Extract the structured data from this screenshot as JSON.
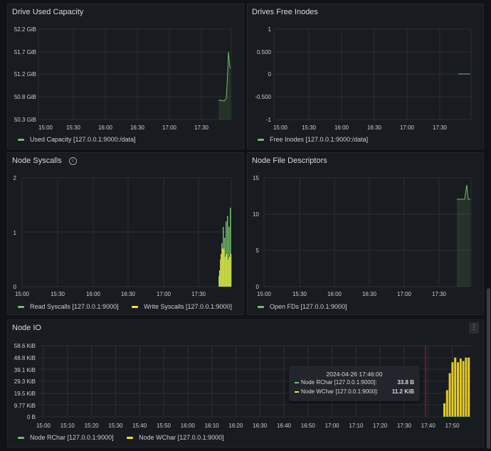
{
  "panels": [
    {
      "id": "drive-used",
      "title": "Drive Used Capacity",
      "y_ticks": [
        "52.2 GiB",
        "51.7 GiB",
        "51.2 GiB",
        "50.8 GiB",
        "50.3 GiB"
      ],
      "x_ticks": [
        "15:00",
        "15:30",
        "16:00",
        "16:30",
        "17:00",
        "17:30"
      ],
      "legend": [
        {
          "label": "Used Capacity [127.0.0.1:9000:/data]",
          "color": "#73bf69"
        }
      ]
    },
    {
      "id": "drives-free-inodes",
      "title": "Drives Free Inodes",
      "y_ticks": [
        "1",
        "0.500",
        "0",
        "-0.500",
        "-1"
      ],
      "x_ticks": [
        "15:00",
        "15:30",
        "16:00",
        "16:30",
        "17:00",
        "17:30"
      ],
      "legend": [
        {
          "label": "Free Inodes [127.0.0.1:9000:/data]",
          "color": "#73bf69"
        }
      ]
    },
    {
      "id": "node-syscalls",
      "title": "Node Syscalls",
      "info_icon": "i",
      "y_ticks": [
        "2",
        "1",
        "0"
      ],
      "x_ticks": [
        "15:00",
        "15:30",
        "16:00",
        "16:30",
        "17:00",
        "17:30"
      ],
      "legend": [
        {
          "label": "Read Syscalls [127.0.0.1:9000]",
          "color": "#73bf69"
        },
        {
          "label": "Write Syscalls [127.0.0.1:9000]",
          "color": "#fade2a"
        }
      ]
    },
    {
      "id": "node-file-descriptors",
      "title": "Node File Descriptors",
      "y_ticks": [
        "15",
        "10",
        "5",
        "0"
      ],
      "x_ticks": [
        "15:00",
        "15:30",
        "16:00",
        "16:30",
        "17:00",
        "17:30"
      ],
      "legend": [
        {
          "label": "Open FDs [127.0.0.1:9000]",
          "color": "#73bf69"
        }
      ]
    },
    {
      "id": "node-io",
      "title": "Node IO",
      "menu_icon": "⋮",
      "y_ticks": [
        "58.6 KiB",
        "48.8 KiB",
        "39.1 KiB",
        "29.3 KiB",
        "19.5 KiB",
        "9.77 KiB",
        "0 B"
      ],
      "x_ticks": [
        "15:00",
        "15:10",
        "15:20",
        "15:30",
        "15:40",
        "15:50",
        "16:00",
        "16:10",
        "16:20",
        "16:30",
        "16:40",
        "16:50",
        "17:00",
        "17:10",
        "17:20",
        "17:30",
        "17:40",
        "17:50"
      ],
      "legend": [
        {
          "label": "Node RChar [127.0.0.1:9000]",
          "color": "#73bf69"
        },
        {
          "label": "Node WChar [127.0.0.1:9000]",
          "color": "#fade2a"
        }
      ],
      "tooltip": {
        "time": "2024-04-26 17:46:00",
        "rows": [
          {
            "label": "Node RChar [127.0.0.1:9000]:",
            "value": "33.8 B",
            "color": "#73bf69"
          },
          {
            "label": "Node WChar [127.0.0.1:9000]:",
            "value": "11.2 KiB",
            "color": "#fade2a"
          }
        ]
      }
    }
  ],
  "chart_data": [
    {
      "type": "line",
      "series": [
        {
          "name": "Used Capacity [127.0.0.1:9000:/data]",
          "x": [
            "17:44",
            "17:46",
            "17:48",
            "17:50",
            "17:51",
            "17:52",
            "17:53",
            "17:54"
          ],
          "values": [
            50.8,
            50.8,
            50.8,
            50.85,
            51.2,
            51.7,
            51.4,
            51.35
          ]
        }
      ],
      "ylim": [
        50.3,
        52.2
      ],
      "ylabel_unit": "GiB"
    },
    {
      "type": "line",
      "series": [
        {
          "name": "Free Inodes [127.0.0.1:9000:/data]",
          "x": [
            "17:46",
            "17:54"
          ],
          "values": [
            0,
            0
          ]
        }
      ],
      "ylim": [
        -1,
        1
      ]
    },
    {
      "type": "bar",
      "series": [
        {
          "name": "Read Syscalls [127.0.0.1:9000]",
          "values": [
            0.2,
            0.5,
            0.8,
            1.1,
            0.9,
            1.2,
            1.3,
            1.1,
            1.45
          ]
        },
        {
          "name": "Write Syscalls [127.0.0.1:9000]",
          "values": [
            0.3,
            0.6,
            0.7,
            0.7,
            0.55,
            0.6,
            0.5,
            0.55,
            0.6
          ]
        }
      ],
      "ylim": [
        0,
        2
      ]
    },
    {
      "type": "line",
      "series": [
        {
          "name": "Open FDs [127.0.0.1:9000]",
          "x": [
            "17:46",
            "17:50",
            "17:51",
            "17:52",
            "17:54"
          ],
          "values": [
            12,
            12,
            14,
            12,
            12
          ]
        }
      ],
      "ylim": [
        0,
        15
      ]
    },
    {
      "type": "bar",
      "series": [
        {
          "name": "Node RChar [127.0.0.1:9000]",
          "values": [
            0.03,
            0.03,
            0.03,
            0.03,
            0.03,
            0.03,
            0.03,
            0.03,
            0.03,
            0.03
          ]
        },
        {
          "name": "Node WChar [127.0.0.1:9000]",
          "values": [
            11.2,
            22,
            36,
            45,
            48.8,
            45,
            48,
            46,
            48.8,
            48.8
          ]
        }
      ],
      "ylim": [
        0,
        58.6
      ],
      "ylabel_unit": "KiB"
    }
  ]
}
